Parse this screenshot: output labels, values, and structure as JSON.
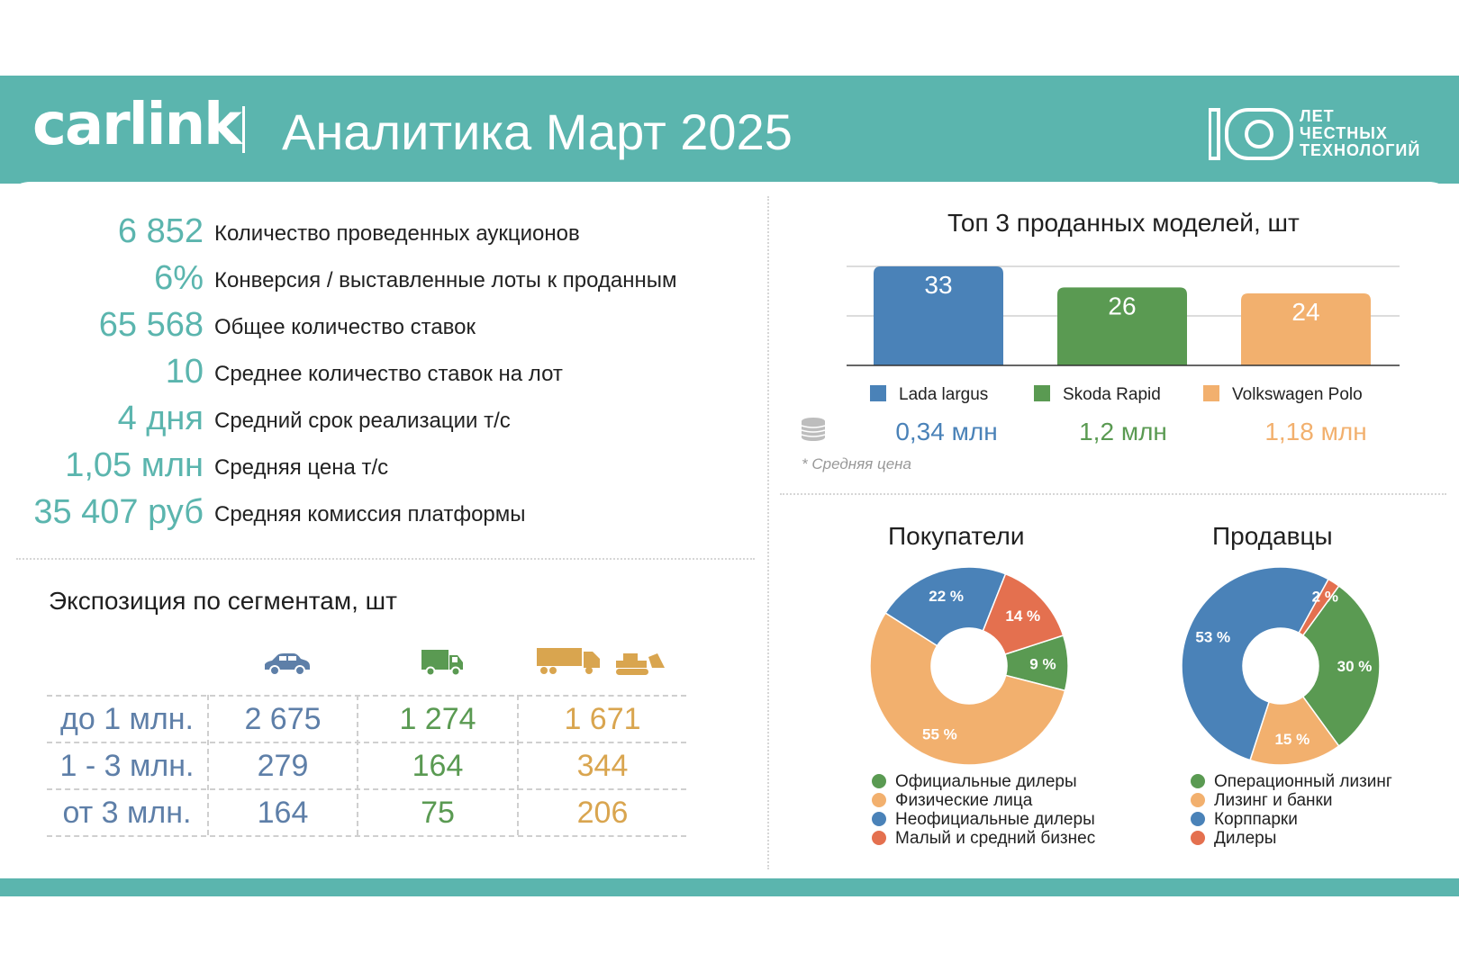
{
  "header": {
    "logo": "carlink",
    "title": "Аналитика Март 2025",
    "badge_number": "10",
    "badge_lines": [
      "ЛЕТ",
      "ЧЕСТНЫХ",
      "ТЕХНОЛОГИЙ"
    ]
  },
  "kpis": [
    {
      "value": "6 852",
      "label": "Количество проведенных аукционов"
    },
    {
      "value": "6%",
      "label": "Конверсия / выставленные лоты к проданным"
    },
    {
      "value": "65 568",
      "label": "Общее количество ставок"
    },
    {
      "value": "10",
      "label": "Среднее количество ставок на лот"
    },
    {
      "value": "4 дня",
      "label": "Средний срок реализации т/с"
    },
    {
      "value": "1,05 млн",
      "label": "Средняя цена т/с"
    },
    {
      "value": "35 407 руб",
      "label": "Средняя комиссия платформы"
    }
  ],
  "colors": {
    "teal": "#5bb5ae",
    "blue": "#4a82b8",
    "green": "#5a9a52",
    "orange": "#f2b06e",
    "red": "#e4704f",
    "table_label": "#5e7fa8"
  },
  "segments": {
    "title": "Экспозиция по сегментам, шт",
    "columns": [
      "car-icon",
      "van-icon",
      "truck-and-bulldozer-icon"
    ],
    "rows": [
      {
        "label": "до 1 млн.",
        "values": [
          "2 675",
          "1 274",
          "1 671"
        ]
      },
      {
        "label": "1 - 3 млн.",
        "values": [
          "279",
          "164",
          "344"
        ]
      },
      {
        "label": "от 3 млн.",
        "values": [
          "164",
          "75",
          "206"
        ]
      }
    ]
  },
  "top_models": {
    "prices": [
      "0,34 млн",
      "1,2 млн",
      "1,18 млн"
    ],
    "coins_icon": "coins-icon",
    "note": "* Средняя цена"
  },
  "chart_data": [
    {
      "type": "bar",
      "title": "Топ 3 проданных моделей, шт",
      "categories": [
        "Lada largus",
        "Skoda Rapid",
        "Volkswagen Polo"
      ],
      "values": [
        33,
        26,
        24
      ],
      "colors": [
        "#4a82b8",
        "#5a9a52",
        "#f2b06e"
      ],
      "ylim": [
        0,
        33
      ],
      "grid": true,
      "legend": "bottom"
    },
    {
      "type": "pie",
      "title": "Покупатели",
      "labels": [
        "Официальные дилеры",
        "Физические лица",
        "Неофициальные дилеры",
        "Малый и средний бизнес"
      ],
      "values": [
        9,
        55,
        22,
        14
      ],
      "value_labels": [
        "9 %",
        "55 %",
        "22 %",
        "14 %"
      ],
      "colors": [
        "#5a9a52",
        "#f2b06e",
        "#4a82b8",
        "#e4704f"
      ],
      "legend": "bottom"
    },
    {
      "type": "pie",
      "title": "Продавцы",
      "labels": [
        "Операционный лизинг",
        "Лизинг и банки",
        "Корппарки",
        "Дилеры"
      ],
      "values": [
        30,
        15,
        53,
        2
      ],
      "value_labels": [
        "30 %",
        "15 %",
        "53 %",
        "2 %"
      ],
      "colors": [
        "#5a9a52",
        "#f2b06e",
        "#4a82b8",
        "#e4704f"
      ],
      "legend": "bottom"
    }
  ]
}
